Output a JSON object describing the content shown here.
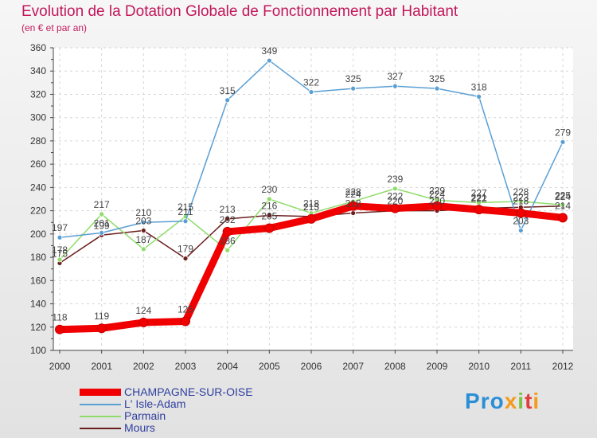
{
  "title": "Evolution de la Dotation Globale de Fonctionnement par Habitant",
  "subtitle": "(en € et par an)",
  "logo": {
    "text": "Proxiti",
    "colors": [
      "#2b8fd6",
      "#f59a1b",
      "#7cc242",
      "#e23c3c"
    ]
  },
  "chart_data": {
    "type": "line",
    "title": "Evolution de la Dotation Globale de Fonctionnement par Habitant",
    "subtitle": "(en € et par an)",
    "xlabel": "",
    "ylabel": "",
    "ylim": [
      100,
      360
    ],
    "yticks": [
      100,
      120,
      140,
      160,
      180,
      200,
      220,
      240,
      260,
      280,
      300,
      320,
      340,
      360
    ],
    "grid": true,
    "legend_position": "bottom-left",
    "x": [
      "2000",
      "2001",
      "2002",
      "2003",
      "2004",
      "2005",
      "2006",
      "2007",
      "2008",
      "2009",
      "2010",
      "2011",
      "2012"
    ],
    "series": [
      {
        "name": "CHAMPAGNE-SUR-OISE",
        "color": "#f00000",
        "values": [
          118,
          119,
          124,
          125,
          202,
          205,
          213,
          224,
          222,
          224,
          221,
          218,
          214
        ]
      },
      {
        "name": "L' Isle-Adam",
        "color": "#5a9fd4",
        "values": [
          197,
          201,
          210,
          211,
          315,
          349,
          322,
          325,
          327,
          325,
          318,
          203,
          279
        ]
      },
      {
        "name": "Parmain",
        "color": "#8fdc6a",
        "values": [
          178,
          217,
          187,
          215,
          186,
          230,
          218,
          228,
          239,
          229,
          227,
          228,
          225
        ]
      },
      {
        "name": "Mours",
        "color": "#6b1e1e",
        "values": [
          175,
          199,
          203,
          179,
          213,
          216,
          215,
          218,
          220,
          220,
          222,
          223,
          224
        ]
      }
    ]
  }
}
